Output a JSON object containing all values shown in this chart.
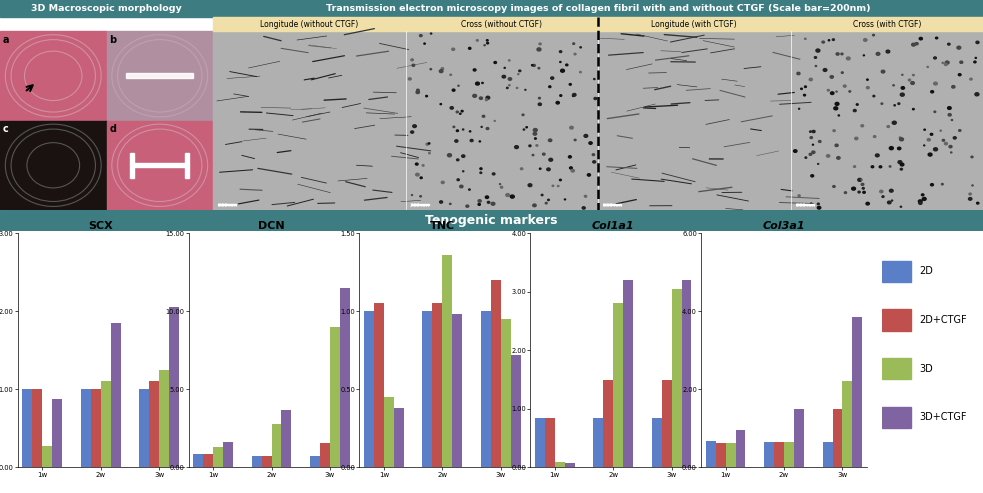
{
  "teal_color": "#3d7d82",
  "wheat_color": "#f0dfa8",
  "white_bg": "#ffffff",
  "section1_title": "3D Macroscopic morphology",
  "section2_title": "Transmission electron microscopy images of collagen fibril with and without CTGF (Scale bar=200nm)",
  "tenogenic_title": "Tenogenic markers",
  "subplot_labels": [
    "Longitude (without CTGF)",
    "Cross (without CTGF)",
    "Longitude (with CTGF)",
    "Cross (with CTGF)"
  ],
  "bar_groups": [
    "SCX",
    "DCN",
    "TNC",
    "Col1a1",
    "Col3a1"
  ],
  "x_labels": [
    "1w",
    "2w",
    "3w"
  ],
  "colors": [
    "#5b7ec9",
    "#c0504d",
    "#9bbb59",
    "#8064a2"
  ],
  "legend_labels": [
    "2D",
    "2D+CTGF",
    "3D",
    "3D+CTGF"
  ],
  "SCX": {
    "ylim": [
      0,
      3.0
    ],
    "yticks": [
      0.0,
      1.0,
      2.0,
      3.0
    ],
    "data": [
      [
        1.0,
        1.0,
        0.28,
        0.88
      ],
      [
        1.0,
        1.0,
        1.1,
        1.85
      ],
      [
        1.0,
        1.1,
        1.25,
        2.05
      ]
    ]
  },
  "DCN": {
    "ylim": [
      0,
      15.0
    ],
    "yticks": [
      0.0,
      5.0,
      10.0,
      15.0
    ],
    "data": [
      [
        0.88,
        0.85,
        1.3,
        1.65
      ],
      [
        0.75,
        0.75,
        2.8,
        3.7
      ],
      [
        0.75,
        1.55,
        9.0,
        11.5
      ]
    ]
  },
  "TNC": {
    "ylim": [
      0,
      1.5
    ],
    "yticks": [
      0.0,
      0.5,
      1.0,
      1.5
    ],
    "data": [
      [
        1.0,
        1.05,
        0.45,
        0.38
      ],
      [
        1.0,
        1.05,
        1.36,
        0.98
      ],
      [
        1.0,
        1.2,
        0.95,
        0.72
      ]
    ]
  },
  "Col1a1": {
    "ylim": [
      0,
      4.0
    ],
    "yticks": [
      0.0,
      1.0,
      2.0,
      3.0,
      4.0
    ],
    "data": [
      [
        0.85,
        0.85,
        0.1,
        0.08
      ],
      [
        0.85,
        1.5,
        2.8,
        3.2
      ],
      [
        0.85,
        1.5,
        3.05,
        3.2
      ]
    ]
  },
  "Col3a1": {
    "ylim": [
      0,
      6.0
    ],
    "yticks": [
      0.0,
      2.0,
      4.0,
      6.0
    ],
    "data": [
      [
        0.68,
        0.62,
        0.62,
        0.95
      ],
      [
        0.65,
        0.65,
        0.65,
        1.5
      ],
      [
        0.65,
        1.5,
        2.2,
        3.85
      ]
    ]
  }
}
